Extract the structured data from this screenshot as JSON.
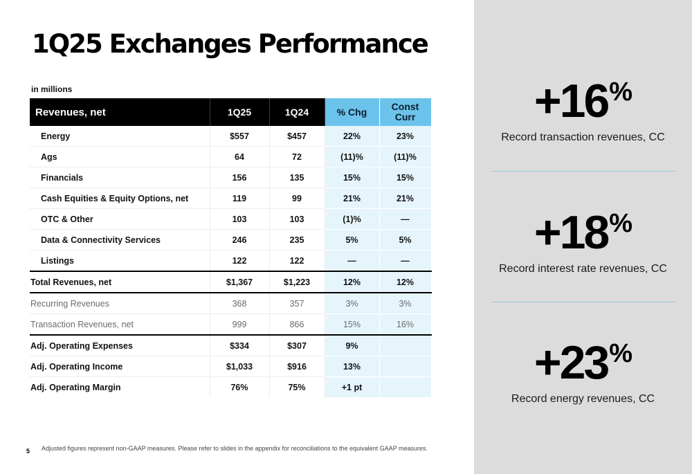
{
  "title": "1Q25 Exchanges Performance",
  "units_note": "in millions",
  "table": {
    "headers": [
      "Revenues, net",
      "1Q25",
      "1Q24",
      "% Chg",
      "Const Curr"
    ],
    "rows": [
      [
        "Energy",
        "$557",
        "$457",
        "22%",
        "23%"
      ],
      [
        "Ags",
        "64",
        "72",
        "(11)%",
        "(11)%"
      ],
      [
        "Financials",
        "156",
        "135",
        "15%",
        "15%"
      ],
      [
        "Cash Equities & Equity Options, net",
        "119",
        "99",
        "21%",
        "21%"
      ],
      [
        "OTC & Other",
        "103",
        "103",
        "(1)%",
        "—"
      ],
      [
        "Data & Connectivity Services",
        "246",
        "235",
        "5%",
        "5%"
      ],
      [
        "Listings",
        "122",
        "122",
        "—",
        "—"
      ],
      [
        "Total Revenues, net",
        "$1,367",
        "$1,223",
        "12%",
        "12%"
      ],
      [
        "Recurring Revenues",
        "368",
        "357",
        "3%",
        "3%"
      ],
      [
        "Transaction Revenues, net",
        "999",
        "866",
        "15%",
        "16%"
      ],
      [
        "Adj. Operating Expenses",
        "$334",
        "$307",
        "9%",
        ""
      ],
      [
        "Adj. Operating Income",
        "$1,033",
        "$916",
        "13%",
        ""
      ],
      [
        "Adj. Operating Margin",
        "76%",
        "75%",
        "+1 pt",
        ""
      ]
    ]
  },
  "highlights": [
    {
      "value": "+16",
      "unit": "%",
      "caption": "Record transaction revenues, CC"
    },
    {
      "value": "+18",
      "unit": "%",
      "caption": "Record interest rate revenues, CC"
    },
    {
      "value": "+23",
      "unit": "%",
      "caption": "Record energy revenues, CC"
    }
  ],
  "footnote": "Adjusted figures represent non-GAAP measures. Please refer to slides in the appendix for reconciliations to the equivalent GAAP measures.",
  "page_number": "5",
  "colors": {
    "header_dark": "#000000",
    "header_accent": "#6bc3eb",
    "accent_column_shade": "#e6f5fc",
    "side_panel": "#dcdcdc",
    "divider": "#8fc9e3"
  }
}
